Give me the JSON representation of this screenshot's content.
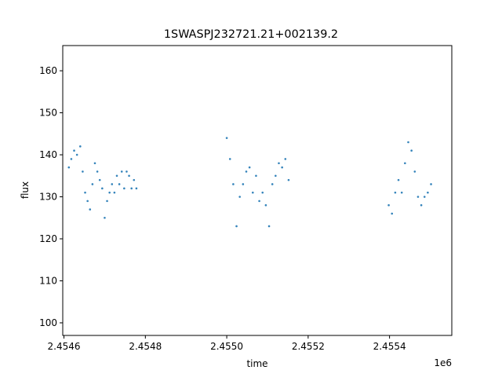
{
  "chart_data": {
    "type": "scatter",
    "title": "1SWASPJ232721.21+002139.2",
    "xlabel": "time",
    "ylabel": "flux",
    "x_offset_label": "1e6",
    "xlim": [
      2454597,
      2455553
    ],
    "ylim": [
      97,
      166
    ],
    "x_ticks": [
      2454600,
      2454800,
      2455000,
      2455200,
      2455400
    ],
    "x_tick_labels": [
      "2.4546",
      "2.4548",
      "2.4550",
      "2.4552",
      "2.4554"
    ],
    "y_ticks": [
      100,
      110,
      120,
      130,
      140,
      150,
      160
    ],
    "y_tick_labels": [
      "100",
      "110",
      "120",
      "130",
      "140",
      "150",
      "160"
    ],
    "grid": false,
    "marker_color": "#1f77b4",
    "series": [
      {
        "x": [
          2454612,
          2454618,
          2454625,
          2454632,
          2454640,
          2454646,
          2454652,
          2454658,
          2454664,
          2454670,
          2454676,
          2454682,
          2454688,
          2454694,
          2454700,
          2454706,
          2454712,
          2454718,
          2454724,
          2454730,
          2454736,
          2454742,
          2454748,
          2454754,
          2454760,
          2454766,
          2454772,
          2454778,
          2455000,
          2455008,
          2455016,
          2455024,
          2455032,
          2455040,
          2455048,
          2455056,
          2455064,
          2455072,
          2455080,
          2455088,
          2455096,
          2455104,
          2455112,
          2455120,
          2455128,
          2455136,
          2455144,
          2455152,
          2455398,
          2455406,
          2455414,
          2455422,
          2455430,
          2455438,
          2455446,
          2455454,
          2455462,
          2455470,
          2455478,
          2455486,
          2455494,
          2455502
        ],
        "y": [
          137,
          139,
          141,
          140,
          142,
          136,
          131,
          129,
          127,
          133,
          138,
          136,
          134,
          132,
          125,
          129,
          131,
          133,
          131,
          135,
          133,
          136,
          132,
          136,
          135,
          132,
          134,
          132,
          144,
          139,
          133,
          123,
          130,
          133,
          136,
          137,
          131,
          135,
          129,
          131,
          128,
          123,
          133,
          135,
          138,
          137,
          139,
          134,
          128,
          126,
          131,
          134,
          131,
          138,
          143,
          141,
          136,
          130,
          128,
          130,
          131,
          133
        ]
      }
    ]
  }
}
